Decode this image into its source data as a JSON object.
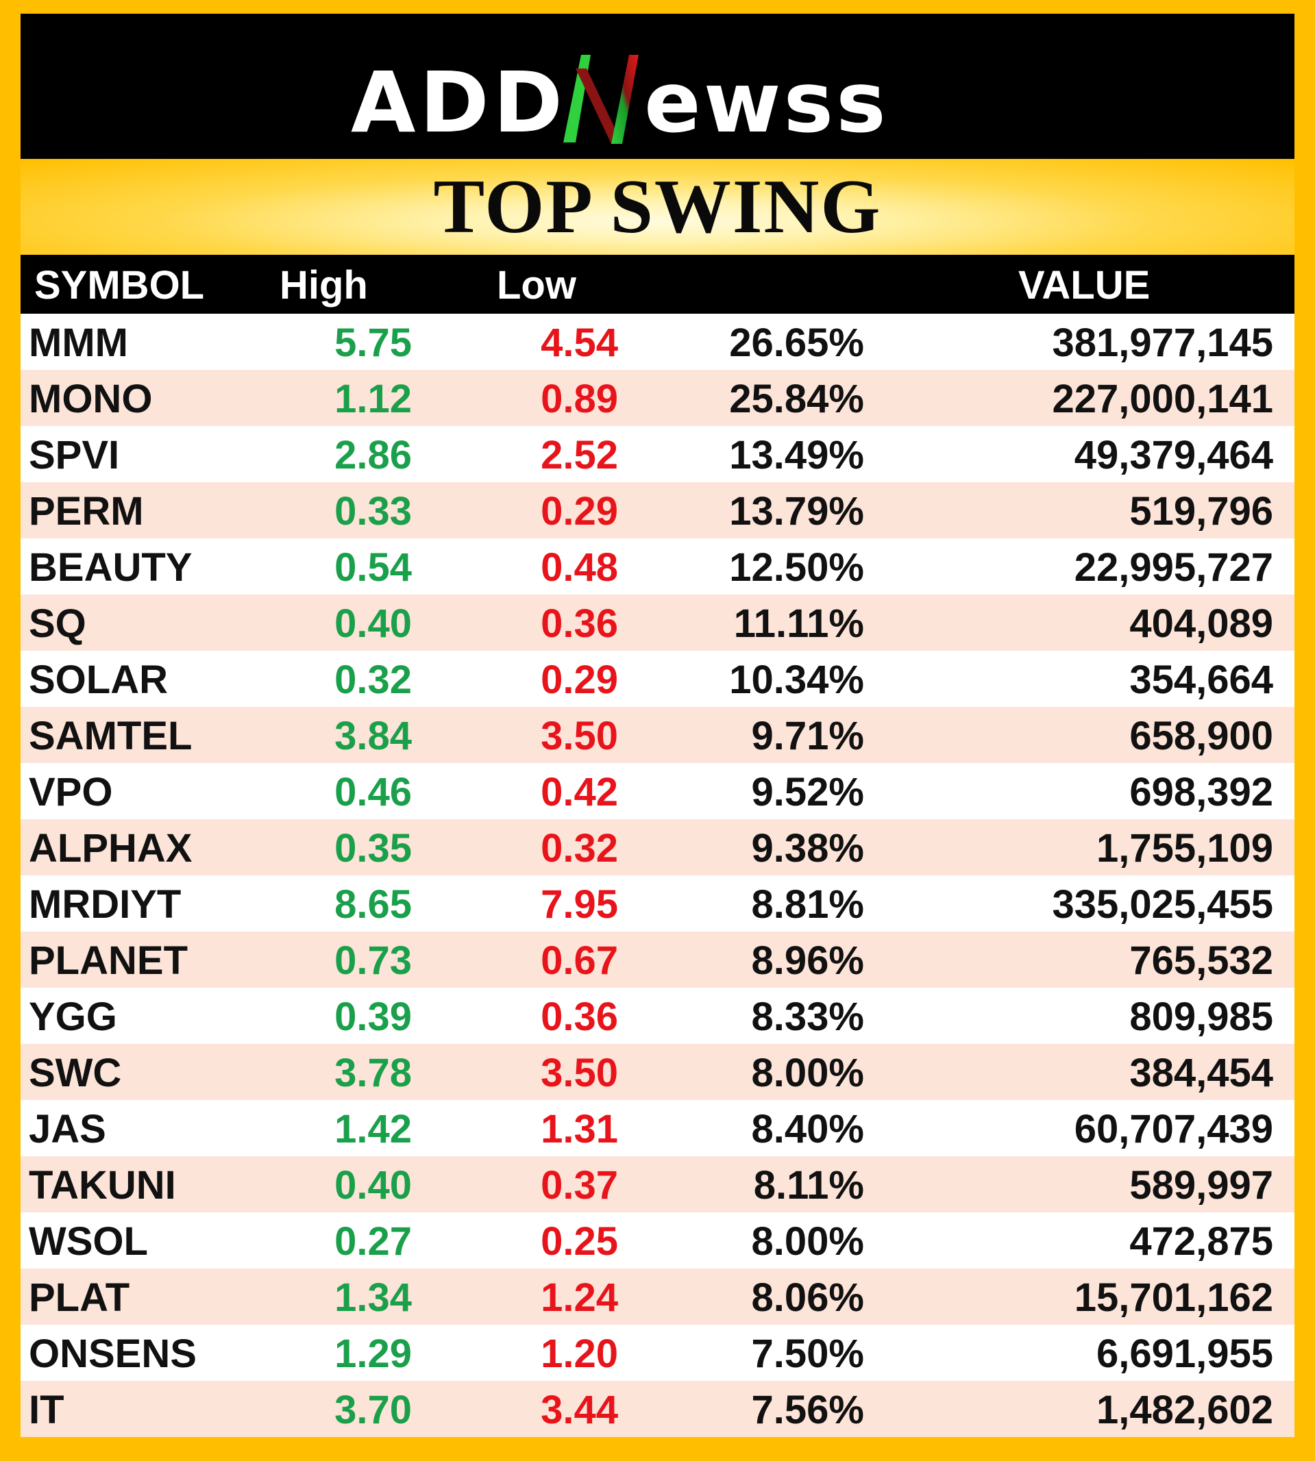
{
  "brand": {
    "logo_text": "ADDNewss",
    "logo_letters": {
      "left": "ADD",
      "n": "N",
      "right": "ewss"
    },
    "colors": {
      "n_green": "#2fd13e",
      "n_red": "#d5181f",
      "text": "#ffffff"
    }
  },
  "title": "TOP SWING",
  "table": {
    "headers": {
      "symbol": "SYMBOL",
      "high": "High",
      "low": "Low",
      "pct": "",
      "value": "VALUE"
    },
    "rows": [
      {
        "symbol": "MMM",
        "high": "5.75",
        "low": "4.54",
        "pct": "26.65%",
        "value": "381,977,145"
      },
      {
        "symbol": "MONO",
        "high": "1.12",
        "low": "0.89",
        "pct": "25.84%",
        "value": "227,000,141"
      },
      {
        "symbol": "SPVI",
        "high": "2.86",
        "low": "2.52",
        "pct": "13.49%",
        "value": "49,379,464"
      },
      {
        "symbol": "PERM",
        "high": "0.33",
        "low": "0.29",
        "pct": "13.79%",
        "value": "519,796"
      },
      {
        "symbol": "BEAUTY",
        "high": "0.54",
        "low": "0.48",
        "pct": "12.50%",
        "value": "22,995,727"
      },
      {
        "symbol": "SQ",
        "high": "0.40",
        "low": "0.36",
        "pct": "11.11%",
        "value": "404,089"
      },
      {
        "symbol": "SOLAR",
        "high": "0.32",
        "low": "0.29",
        "pct": "10.34%",
        "value": "354,664"
      },
      {
        "symbol": "SAMTEL",
        "high": "3.84",
        "low": "3.50",
        "pct": "9.71%",
        "value": "658,900"
      },
      {
        "symbol": "VPO",
        "high": "0.46",
        "low": "0.42",
        "pct": "9.52%",
        "value": "698,392"
      },
      {
        "symbol": "ALPHAX",
        "high": "0.35",
        "low": "0.32",
        "pct": "9.38%",
        "value": "1,755,109"
      },
      {
        "symbol": "MRDIYT",
        "high": "8.65",
        "low": "7.95",
        "pct": "8.81%",
        "value": "335,025,455"
      },
      {
        "symbol": "PLANET",
        "high": "0.73",
        "low": "0.67",
        "pct": "8.96%",
        "value": "765,532"
      },
      {
        "symbol": "YGG",
        "high": "0.39",
        "low": "0.36",
        "pct": "8.33%",
        "value": "809,985"
      },
      {
        "symbol": "SWC",
        "high": "3.78",
        "low": "3.50",
        "pct": "8.00%",
        "value": "384,454"
      },
      {
        "symbol": "JAS",
        "high": "1.42",
        "low": "1.31",
        "pct": "8.40%",
        "value": "60,707,439"
      },
      {
        "symbol": "TAKUNI",
        "high": "0.40",
        "low": "0.37",
        "pct": "8.11%",
        "value": "589,997"
      },
      {
        "symbol": "WSOL",
        "high": "0.27",
        "low": "0.25",
        "pct": "8.00%",
        "value": "472,875"
      },
      {
        "symbol": "PLAT",
        "high": "1.34",
        "low": "1.24",
        "pct": "8.06%",
        "value": "15,701,162"
      },
      {
        "symbol": "ONSENS",
        "high": "1.29",
        "low": "1.20",
        "pct": "7.50%",
        "value": "6,691,955"
      },
      {
        "symbol": "IT",
        "high": "3.70",
        "low": "3.44",
        "pct": "7.56%",
        "value": "1,482,602"
      }
    ]
  },
  "colors": {
    "frame": "#ffbf00",
    "high": "#1aa04a",
    "low": "#e8141b",
    "row_alt": "#fde4d8"
  }
}
